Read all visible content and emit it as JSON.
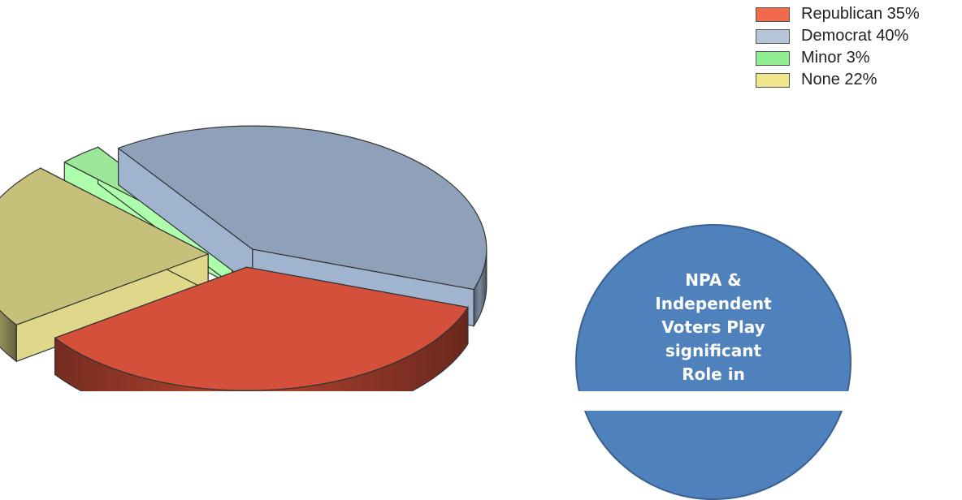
{
  "chart_data": {
    "type": "pie",
    "style": "3d-exploded",
    "slices": [
      {
        "label": "Republican",
        "value": 35,
        "legend_text": "Republican 35%",
        "color": "#d4503a"
      },
      {
        "label": "Democrat",
        "value": 40,
        "legend_text": "Democrat 40%",
        "color": "#8fa1b9"
      },
      {
        "label": "Minor",
        "value": 3,
        "legend_text": "Minor 3%",
        "color": "#9be89a"
      },
      {
        "label": "None",
        "value": 22,
        "legend_text": "None 22%",
        "color": "#c7c07a"
      }
    ],
    "legend_position": "top-right",
    "legend_swatch_colors": [
      "#f06a4b",
      "#b4c4d9",
      "#90ee90",
      "#f0e68c"
    ]
  },
  "callout": {
    "lines": [
      "NPA &",
      "Independent",
      "Voters Play",
      "significant",
      "Role in"
    ],
    "color": "#4f81bd"
  }
}
